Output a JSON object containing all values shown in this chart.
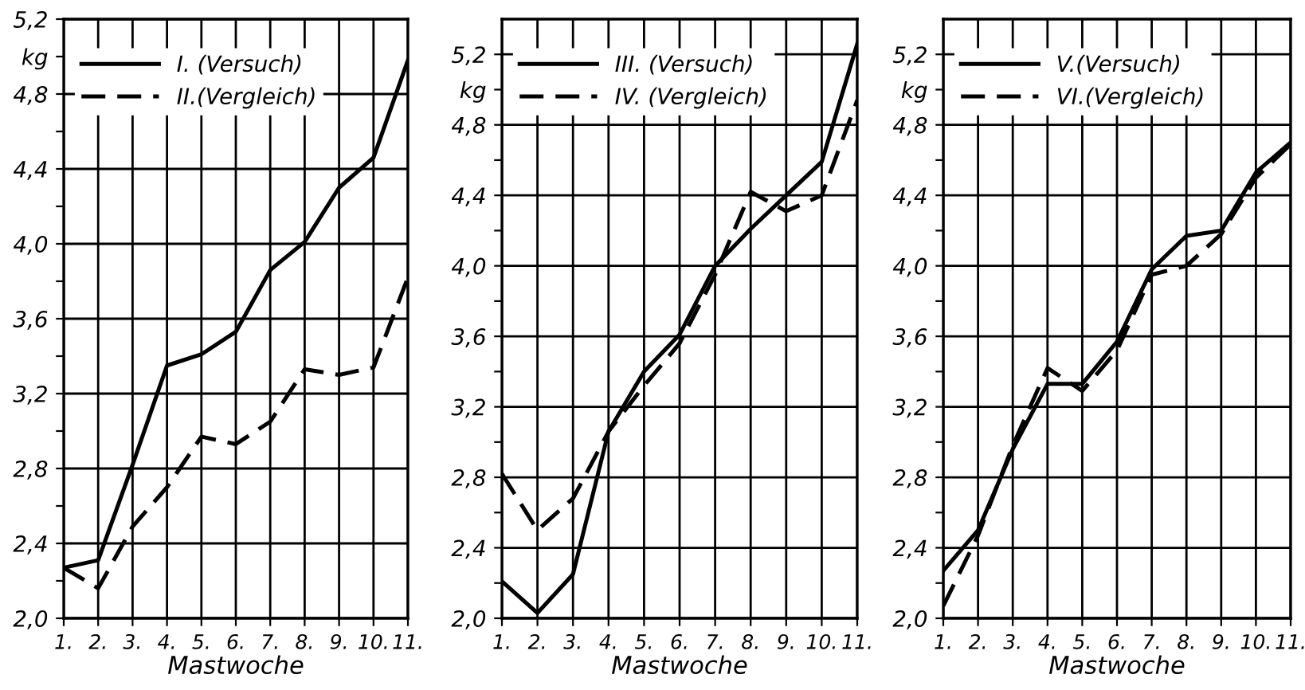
{
  "chart_data": [
    {
      "type": "line",
      "categories": [
        "1.",
        "2.",
        "3.",
        "4.",
        "5.",
        "6.",
        "7.",
        "8.",
        "9.",
        "10.",
        "11."
      ],
      "xlabel": "Mastwoche",
      "ylim": [
        2.0,
        5.2
      ],
      "yticks": [
        "2,0",
        {
          "value": 2.2,
          "label": null
        },
        {
          "value": 2.4,
          "label": "2,4"
        },
        {
          "value": 2.6,
          "label": null
        },
        {
          "value": 2.8,
          "label": "2,8"
        },
        {
          "value": 3.0,
          "label": null
        },
        {
          "value": 3.2,
          "label": "3,2"
        },
        {
          "value": 3.4,
          "label": null
        },
        {
          "value": 3.6,
          "label": "3,6"
        },
        {
          "value": 3.8,
          "label": null
        },
        {
          "value": 4.0,
          "label": "4,0"
        },
        {
          "value": 4.2,
          "label": null
        },
        {
          "value": 4.4,
          "label": "4,4"
        },
        {
          "value": 4.6,
          "label": null
        },
        {
          "value": 4.8,
          "label": "4,8"
        },
        {
          "value": 5.0,
          "label": "kg"
        },
        {
          "value": 5.2,
          "label": "5,2"
        }
      ],
      "grid": true,
      "legend": "top left",
      "series": [
        {
          "name": "I. (Versuch)",
          "color": "#000000",
          "line_style": "solid",
          "values": [
            2.27,
            2.31,
            2.82,
            3.35,
            3.41,
            3.53,
            3.86,
            4.01,
            4.3,
            4.46,
            4.98
          ]
        },
        {
          "name": "II.(Vergleich)",
          "color": "#000000",
          "line_style": "dashed",
          "values": [
            2.27,
            2.16,
            2.49,
            2.7,
            2.97,
            2.93,
            3.05,
            3.33,
            3.3,
            3.34,
            3.82
          ]
        }
      ]
    },
    {
      "type": "line",
      "categories": [
        "1.",
        "2.",
        "3.",
        "4.",
        "5.",
        "6.",
        "7.",
        "8.",
        "9.",
        "10.",
        "11."
      ],
      "xlabel": "Mastwoche",
      "ylim": [
        2.0,
        5.4
      ],
      "yticks": [
        {
          "value": 2.0,
          "label": "2,0"
        },
        {
          "value": 2.2,
          "label": null
        },
        {
          "value": 2.4,
          "label": "2,4"
        },
        {
          "value": 2.6,
          "label": null
        },
        {
          "value": 2.8,
          "label": "2,8"
        },
        {
          "value": 3.0,
          "label": null
        },
        {
          "value": 3.2,
          "label": "3,2"
        },
        {
          "value": 3.4,
          "label": null
        },
        {
          "value": 3.6,
          "label": "3,6"
        },
        {
          "value": 3.8,
          "label": null
        },
        {
          "value": 4.0,
          "label": "4,0"
        },
        {
          "value": 4.2,
          "label": null
        },
        {
          "value": 4.4,
          "label": "4,4"
        },
        {
          "value": 4.6,
          "label": null
        },
        {
          "value": 4.8,
          "label": "4,8"
        },
        {
          "value": 5.0,
          "label": "kg"
        },
        {
          "value": 5.2,
          "label": "5,2"
        }
      ],
      "grid": true,
      "legend": "top left",
      "series": [
        {
          "name": "III. (Versuch)",
          "color": "#000000",
          "line_style": "solid",
          "values": [
            2.21,
            2.03,
            2.25,
            3.06,
            3.4,
            3.61,
            4.0,
            4.21,
            4.4,
            4.59,
            5.26
          ]
        },
        {
          "name": "IV. (Vergleich)",
          "color": "#000000",
          "line_style": "dashed",
          "values": [
            2.82,
            2.5,
            2.68,
            3.06,
            3.32,
            3.56,
            3.95,
            4.42,
            4.31,
            4.4,
            4.94
          ]
        }
      ]
    },
    {
      "type": "line",
      "categories": [
        "1.",
        "2.",
        "3.",
        "4.",
        "5.",
        "6.",
        "7.",
        "8.",
        "9.",
        "10.",
        "11."
      ],
      "xlabel": "Mastwoche",
      "ylim": [
        2.0,
        5.4
      ],
      "yticks": [
        {
          "value": 2.0,
          "label": "2,0"
        },
        {
          "value": 2.2,
          "label": null
        },
        {
          "value": 2.4,
          "label": "2,4"
        },
        {
          "value": 2.6,
          "label": null
        },
        {
          "value": 2.8,
          "label": "2,8"
        },
        {
          "value": 3.0,
          "label": null
        },
        {
          "value": 3.2,
          "label": "3,2"
        },
        {
          "value": 3.4,
          "label": null
        },
        {
          "value": 3.6,
          "label": "3,6"
        },
        {
          "value": 3.8,
          "label": null
        },
        {
          "value": 4.0,
          "label": "4,0"
        },
        {
          "value": 4.2,
          "label": null
        },
        {
          "value": 4.4,
          "label": "4,4"
        },
        {
          "value": 4.6,
          "label": null
        },
        {
          "value": 4.8,
          "label": "4,8"
        },
        {
          "value": 5.0,
          "label": "kg"
        },
        {
          "value": 5.2,
          "label": "5,2"
        }
      ],
      "grid": true,
      "legend": "top left",
      "series": [
        {
          "name": "V.(Versuch)",
          "color": "#000000",
          "line_style": "solid",
          "values": [
            2.27,
            2.5,
            2.96,
            3.33,
            3.33,
            3.57,
            3.98,
            4.17,
            4.2,
            4.53,
            4.7
          ]
        },
        {
          "name": "VI.(Vergleich)",
          "color": "#000000",
          "line_style": "dashed",
          "values": [
            2.07,
            2.47,
            2.98,
            3.42,
            3.29,
            3.52,
            3.95,
            4.0,
            4.18,
            4.5,
            4.69
          ]
        }
      ]
    }
  ]
}
